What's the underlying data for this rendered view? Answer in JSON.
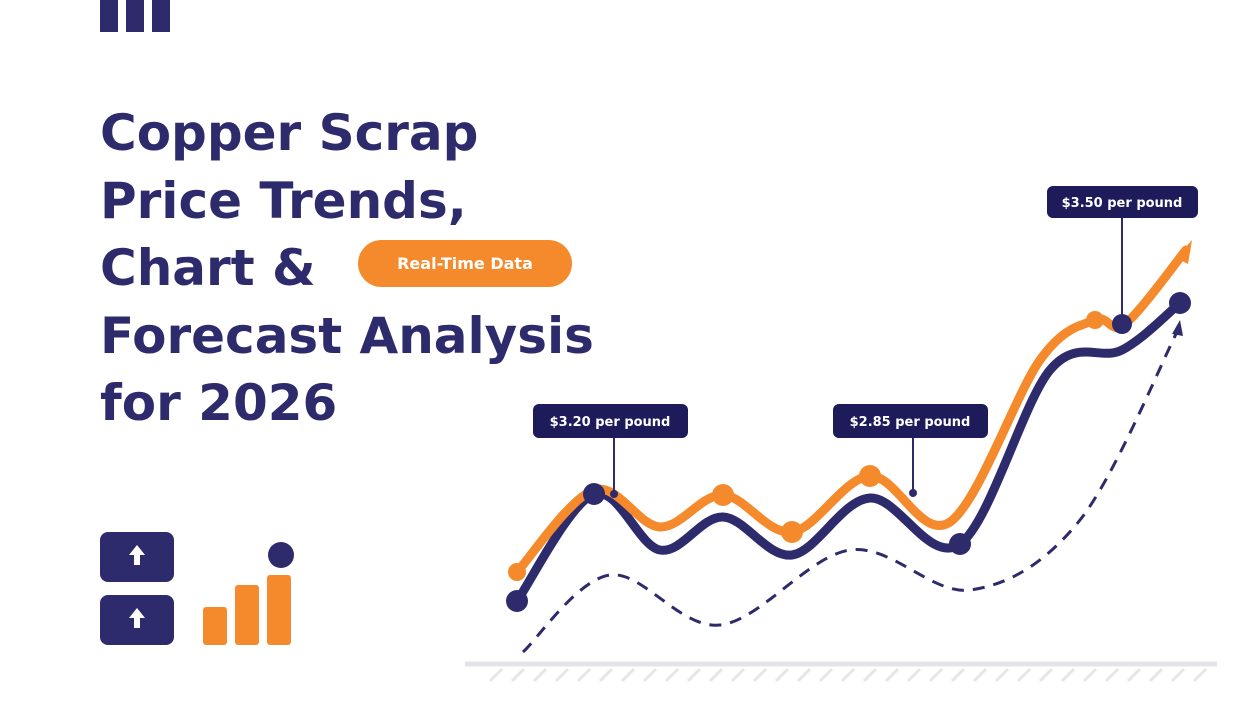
{
  "title": {
    "lines": [
      "Copper Scrap",
      "Price Trends,",
      "Chart &",
      "Forecast Analysis",
      "for 2026"
    ]
  },
  "badge": "Real-Time Data",
  "callouts": [
    "$3.20 per pound",
    "$2.85 per pound",
    "$3.50 per pound"
  ]
}
